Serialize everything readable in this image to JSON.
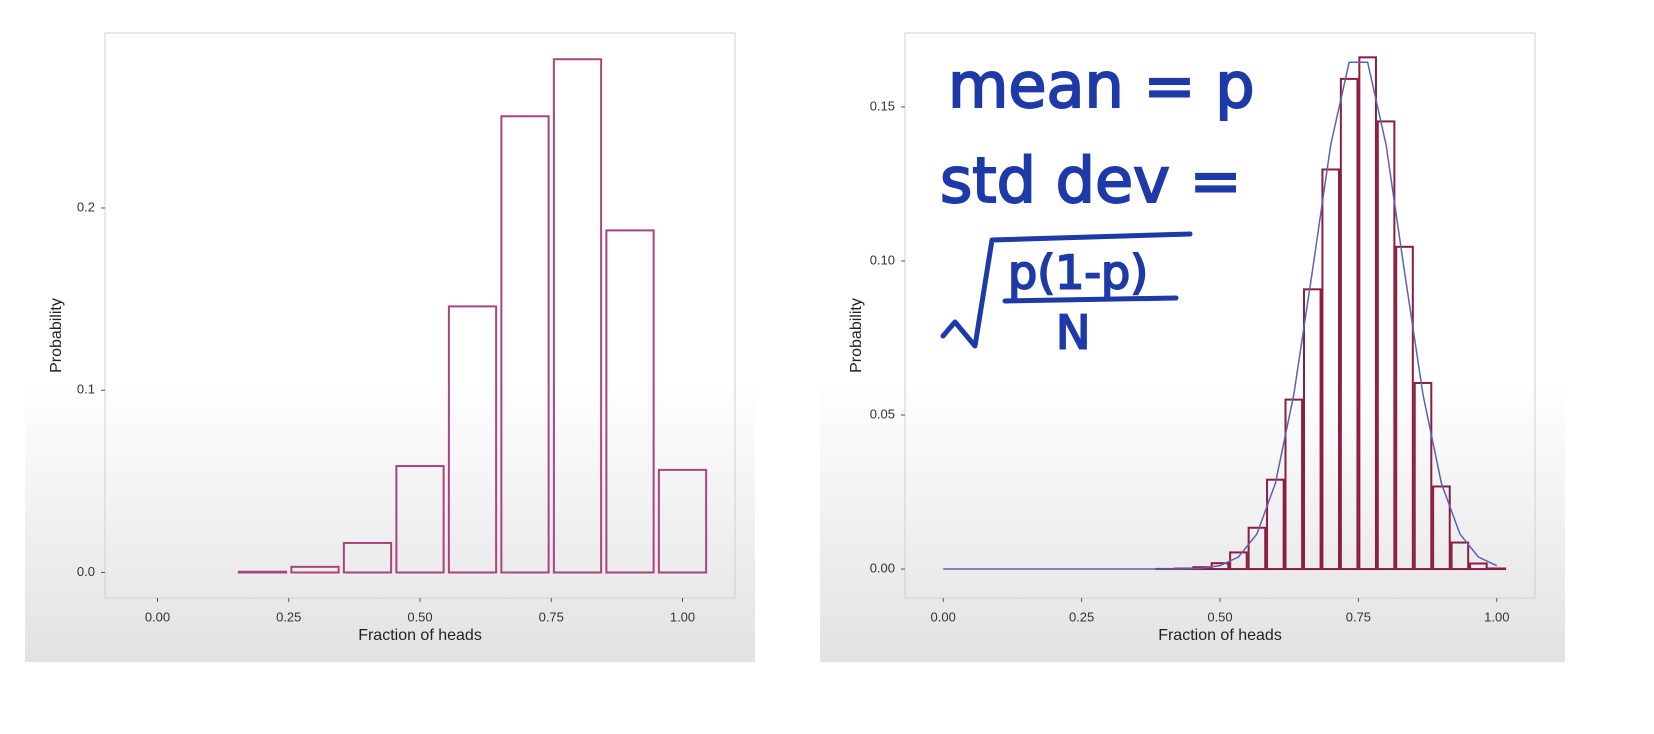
{
  "chart_data": [
    {
      "type": "bar",
      "x_label": "Fraction of heads",
      "y_label": "Probability",
      "x": [
        0,
        0.1,
        0.2,
        0.3,
        0.4,
        0.5,
        0.6,
        0.7,
        0.8,
        0.9,
        1
      ],
      "series": [
        {
          "type": "bar",
          "color": "#a8447e",
          "values": [
            0,
            0,
            0.0004,
            0.0031,
            0.0162,
            0.0584,
            0.146,
            0.2503,
            0.2816,
            0.1877,
            0.0563
          ]
        }
      ],
      "xlim": [
        -0.1,
        1.1
      ],
      "ylim": [
        -0.014,
        0.296
      ],
      "xticks": [
        {
          "value": 0,
          "label": "0.00"
        },
        {
          "value": 0.25,
          "label": "0.25"
        },
        {
          "value": 0.5,
          "label": "0.50"
        },
        {
          "value": 0.75,
          "label": "0.75"
        },
        {
          "value": 1,
          "label": "1.00"
        }
      ],
      "yticks": [
        {
          "value": 0,
          "label": "0.0"
        },
        {
          "value": 0.1,
          "label": "0.1"
        },
        {
          "value": 0.2,
          "label": "0.2"
        }
      ]
    },
    {
      "type": "bar",
      "x_label": "Fraction of heads",
      "y_label": "Probability",
      "annotations": [
        "mean = p",
        "std dev =",
        "p(1-p)",
        "N"
      ],
      "x": [
        0,
        0.0333,
        0.0667,
        0.1,
        0.1333,
        0.1667,
        0.2,
        0.2333,
        0.2667,
        0.3,
        0.3333,
        0.3667,
        0.4,
        0.4333,
        0.4667,
        0.5,
        0.5333,
        0.5667,
        0.6,
        0.6333,
        0.6667,
        0.7,
        0.7333,
        0.7667,
        0.8,
        0.8333,
        0.8667,
        0.9,
        0.9333,
        0.9667,
        1
      ],
      "series": [
        {
          "type": "bar",
          "color": "#8c1d40",
          "values": [
            0,
            0,
            0,
            0,
            0,
            0,
            0,
            0,
            0,
            0,
            0,
            0,
            4e-05,
            0.00016,
            0.0006,
            0.0019,
            0.0054,
            0.0134,
            0.029,
            0.055,
            0.0908,
            0.1297,
            0.1591,
            0.1661,
            0.1453,
            0.1046,
            0.0604,
            0.0268,
            0.0086,
            0.0018,
            0.00018
          ]
        },
        {
          "type": "line",
          "color": "#5a62b8",
          "values": [
            0,
            0,
            0,
            0,
            0,
            0,
            0,
            0,
            0,
            0,
            0,
            0,
            0,
            0,
            0.0003,
            0.0011,
            0.0039,
            0.0114,
            0.0278,
            0.0566,
            0.0965,
            0.1377,
            0.1645,
            0.1645,
            0.1377,
            0.0965,
            0.0566,
            0.0278,
            0.0114,
            0.0039,
            0.0011
          ]
        }
      ],
      "xlim": [
        -0.069,
        1.069
      ],
      "ylim": [
        -0.0094,
        0.174
      ],
      "xticks": [
        {
          "value": 0,
          "label": "0.00"
        },
        {
          "value": 0.25,
          "label": "0.25"
        },
        {
          "value": 0.5,
          "label": "0.50"
        },
        {
          "value": 0.75,
          "label": "0.75"
        },
        {
          "value": 1,
          "label": "1.00"
        }
      ],
      "yticks": [
        {
          "value": 0,
          "label": "0.00"
        },
        {
          "value": 0.05,
          "label": "0.05"
        },
        {
          "value": 0.1,
          "label": "0.10"
        },
        {
          "value": 0.15,
          "label": "0.15"
        }
      ]
    }
  ]
}
